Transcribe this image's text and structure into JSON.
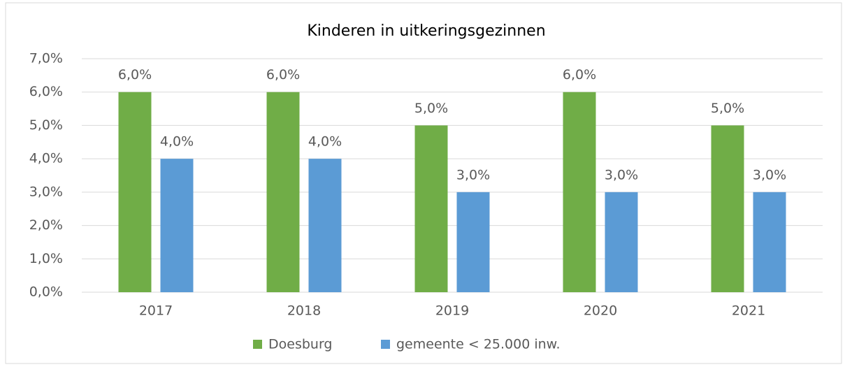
{
  "chart_data": {
    "type": "bar",
    "title": "Kinderen in uitkeringsgezinnen",
    "categories": [
      "2017",
      "2018",
      "2019",
      "2020",
      "2021"
    ],
    "series": [
      {
        "name": "Doesburg",
        "color": "#70ad47",
        "values": [
          6,
          6,
          5,
          6,
          5
        ],
        "value_labels": [
          "6,0%",
          "6,0%",
          "5,0%",
          "6,0%",
          "5,0%"
        ]
      },
      {
        "name": "gemeente < 25.000 inw.",
        "color": "#5b9bd5",
        "values": [
          4,
          4,
          3,
          3,
          3
        ],
        "value_labels": [
          "4,0%",
          "4,0%",
          "3,0%",
          "3,0%",
          "3,0%"
        ]
      }
    ],
    "ylim": [
      0,
      7
    ],
    "yticks": [
      {
        "value": 0,
        "label": "0,0%"
      },
      {
        "value": 1,
        "label": "1,0%"
      },
      {
        "value": 2,
        "label": "2,0%"
      },
      {
        "value": 3,
        "label": "3,0%"
      },
      {
        "value": 4,
        "label": "4,0%"
      },
      {
        "value": 5,
        "label": "5,0%"
      },
      {
        "value": 6,
        "label": "6,0%"
      },
      {
        "value": 7,
        "label": "7,0%"
      }
    ],
    "grid": true,
    "legend": "bottom"
  }
}
